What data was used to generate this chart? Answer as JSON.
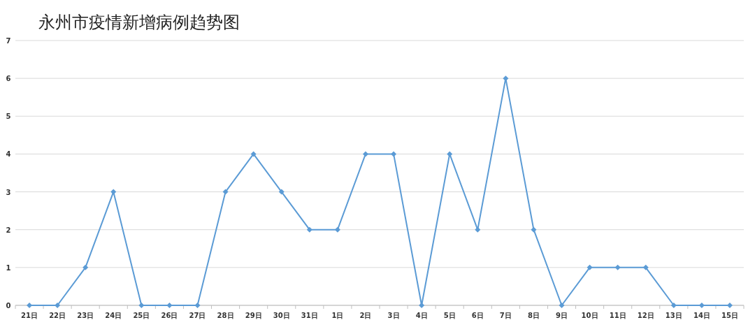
{
  "chart_data": {
    "type": "line",
    "title": "永州市疫情新增病例趋势图",
    "categories": [
      "21日",
      "22日",
      "23日",
      "24日",
      "25日",
      "26日",
      "27日",
      "28日",
      "29日",
      "30日",
      "31日",
      "1日",
      "2日",
      "3日",
      "4日",
      "5日",
      "6日",
      "7日",
      "8日",
      "9日",
      "10日",
      "11日",
      "12日",
      "13日",
      "14日",
      "15日"
    ],
    "series": [
      {
        "color": "#5b9bd5",
        "values": [
          0,
          0,
          1,
          3,
          0,
          0,
          0,
          3,
          4,
          3,
          2,
          2,
          4,
          4,
          0,
          4,
          2,
          6,
          2,
          0,
          1,
          1,
          1,
          0,
          0,
          0
        ]
      }
    ],
    "ylim": [
      0,
      7
    ],
    "yticks": [
      0,
      1,
      2,
      3,
      4,
      5,
      6,
      7
    ],
    "grid": "y",
    "marker": "diamond",
    "line_style": "solid"
  }
}
